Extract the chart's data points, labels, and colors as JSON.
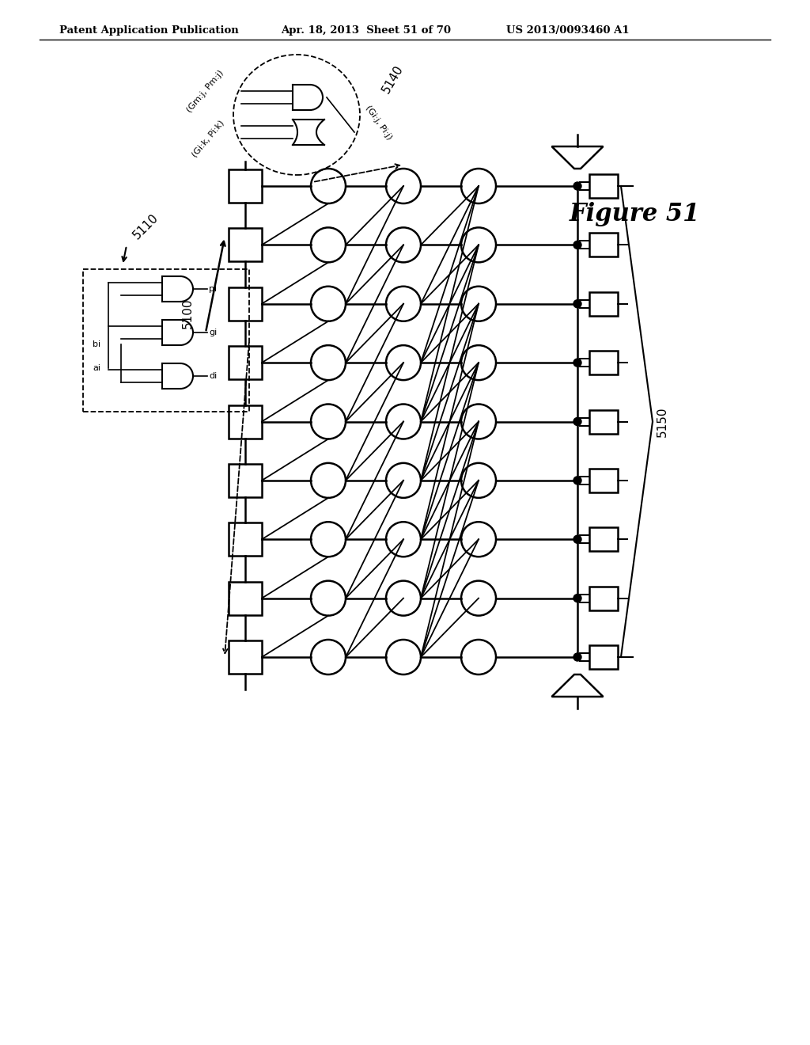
{
  "header_left": "Patent Application Publication",
  "header_mid": "Apr. 18, 2013  Sheet 51 of 70",
  "header_right": "US 2013/0093460 A1",
  "figure_label": "Figure 51",
  "label_5100": "5100",
  "label_5110": "5110",
  "label_5140": "5140",
  "label_5150": "5150",
  "label_gmj_pmj": "(Gm:j, Pm:j)",
  "label_gik_pik": "(Gi:k, Pi:k)",
  "label_gij_pij": "(Gi:j, Pi:j)",
  "label_ai": "ai",
  "label_bi": "bi",
  "label_di": "di",
  "label_gi": "gi",
  "label_pi": "pi",
  "n_rows": 9,
  "bg_color": "#ffffff",
  "line_color": "#000000"
}
